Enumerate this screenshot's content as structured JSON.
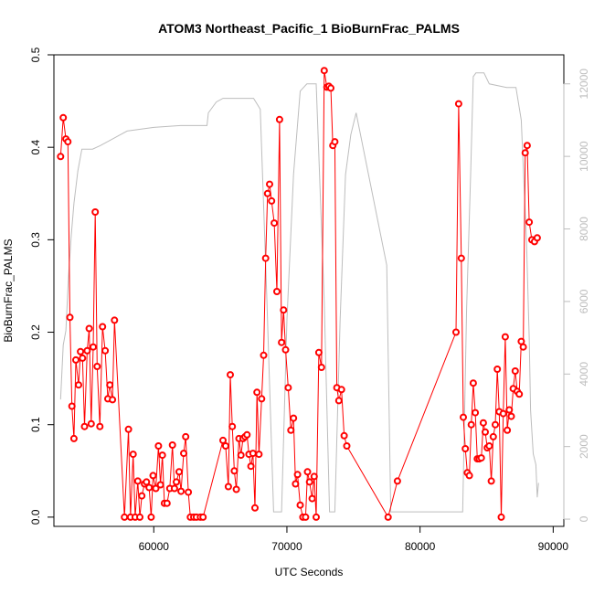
{
  "chart_data": {
    "type": "line",
    "title": "ATOM3 Northeast_Pacific_1 BioBurnFrac_PALMS",
    "xlabel": "UTC Seconds",
    "ylabel": "BioBurnFrac_PALMS",
    "xlim": [
      52500,
      90800
    ],
    "ylim": [
      -0.01,
      0.5
    ],
    "y2lim": [
      -200,
      12800
    ],
    "x_ticks": [
      60000,
      70000,
      80000,
      90000
    ],
    "x_tick_labels": [
      "60000",
      "70000",
      "80000",
      "90000"
    ],
    "y_ticks": [
      0.0,
      0.1,
      0.2,
      0.3,
      0.4,
      0.5
    ],
    "y_tick_labels": [
      "0.0",
      "0.1",
      "0.2",
      "0.3",
      "0.4",
      "0.5"
    ],
    "y2_ticks": [
      0,
      2000,
      4000,
      6000,
      8000,
      10000,
      12000
    ],
    "y2_tick_labels": [
      "0",
      "2000",
      "4000",
      "6000",
      "8000",
      "10000",
      "12000"
    ],
    "colors": {
      "series": "#ff0000",
      "altitude": "#bdbdbd",
      "axis": "#000000"
    },
    "series": [
      {
        "axis": "left",
        "color": "#ff0000",
        "style": "line+points",
        "points": [
          [
            53000,
            0.39
          ],
          [
            53200,
            0.432
          ],
          [
            53400,
            0.409
          ],
          [
            53550,
            0.406
          ],
          [
            53700,
            0.216
          ],
          [
            53850,
            0.12
          ],
          [
            54000,
            0.085
          ],
          [
            54150,
            0.17
          ],
          [
            54350,
            0.143
          ],
          [
            54500,
            0.179
          ],
          [
            54650,
            0.172
          ],
          [
            54800,
            0.098
          ],
          [
            55000,
            0.18
          ],
          [
            55150,
            0.204
          ],
          [
            55300,
            0.101
          ],
          [
            55450,
            0.184
          ],
          [
            55600,
            0.33
          ],
          [
            55750,
            0.163
          ],
          [
            55950,
            0.098
          ],
          [
            56150,
            0.206
          ],
          [
            56350,
            0.18
          ],
          [
            56550,
            0.128
          ],
          [
            56700,
            0.143
          ],
          [
            56900,
            0.127
          ],
          [
            57050,
            0.213
          ],
          [
            57800,
            0.0
          ],
          [
            58100,
            0.095
          ],
          [
            58250,
            0.0
          ],
          [
            58450,
            0.068
          ],
          [
            58600,
            0.0
          ],
          [
            58800,
            0.039
          ],
          [
            58950,
            0.0
          ],
          [
            59100,
            0.023
          ],
          [
            59300,
            0.036
          ],
          [
            59450,
            0.038
          ],
          [
            59650,
            0.032
          ],
          [
            59800,
            0.0
          ],
          [
            59950,
            0.045
          ],
          [
            60150,
            0.031
          ],
          [
            60350,
            0.077
          ],
          [
            60500,
            0.035
          ],
          [
            60650,
            0.067
          ],
          [
            60800,
            0.015
          ],
          [
            61000,
            0.015
          ],
          [
            61200,
            0.031
          ],
          [
            61400,
            0.078
          ],
          [
            61550,
            0.031
          ],
          [
            61700,
            0.038
          ],
          [
            61900,
            0.049
          ],
          [
            62050,
            0.028
          ],
          [
            62250,
            0.069
          ],
          [
            62400,
            0.087
          ],
          [
            62600,
            0.027
          ],
          [
            62750,
            0.0
          ],
          [
            63000,
            0.0
          ],
          [
            63200,
            0.0
          ],
          [
            63500,
            0.0
          ],
          [
            63700,
            0.0
          ],
          [
            65200,
            0.083
          ],
          [
            65400,
            0.077
          ],
          [
            65600,
            0.033
          ],
          [
            65750,
            0.154
          ],
          [
            65900,
            0.098
          ],
          [
            66050,
            0.05
          ],
          [
            66200,
            0.03
          ],
          [
            66400,
            0.085
          ],
          [
            66550,
            0.067
          ],
          [
            66700,
            0.085
          ],
          [
            66850,
            0.087
          ],
          [
            67000,
            0.089
          ],
          [
            67150,
            0.068
          ],
          [
            67300,
            0.055
          ],
          [
            67450,
            0.069
          ],
          [
            67600,
            0.01
          ],
          [
            67750,
            0.135
          ],
          [
            67900,
            0.068
          ],
          [
            68100,
            0.128
          ],
          [
            68250,
            0.175
          ],
          [
            68400,
            0.28
          ],
          [
            68550,
            0.35
          ],
          [
            68700,
            0.36
          ],
          [
            68850,
            0.342
          ],
          [
            69050,
            0.318
          ],
          [
            69250,
            0.244
          ],
          [
            69450,
            0.43
          ],
          [
            69600,
            0.189
          ],
          [
            69750,
            0.224
          ],
          [
            69900,
            0.181
          ],
          [
            70100,
            0.14
          ],
          [
            70300,
            0.094
          ],
          [
            70500,
            0.107
          ],
          [
            70650,
            0.036
          ],
          [
            70800,
            0.046
          ],
          [
            71000,
            0.013
          ],
          [
            71200,
            0.0
          ],
          [
            71400,
            0.0
          ],
          [
            71550,
            0.049
          ],
          [
            71700,
            0.038
          ],
          [
            71900,
            0.02
          ],
          [
            72050,
            0.044
          ],
          [
            72200,
            0.0
          ],
          [
            72400,
            0.178
          ],
          [
            72600,
            0.162
          ],
          [
            72800,
            0.483
          ],
          [
            73000,
            0.465
          ],
          [
            73150,
            0.466
          ],
          [
            73300,
            0.464
          ],
          [
            73450,
            0.402
          ],
          [
            73600,
            0.406
          ],
          [
            73750,
            0.14
          ],
          [
            73900,
            0.126
          ],
          [
            74100,
            0.138
          ],
          [
            74300,
            0.088
          ],
          [
            74500,
            0.077
          ],
          [
            77600,
            0.0
          ],
          [
            78300,
            0.039
          ],
          [
            82700,
            0.2
          ],
          [
            82900,
            0.447
          ],
          [
            83100,
            0.28
          ],
          [
            83250,
            0.108
          ],
          [
            83400,
            0.074
          ],
          [
            83550,
            0.048
          ],
          [
            83700,
            0.045
          ],
          [
            83850,
            0.1
          ],
          [
            84000,
            0.145
          ],
          [
            84150,
            0.113
          ],
          [
            84300,
            0.063
          ],
          [
            84450,
            0.063
          ],
          [
            84600,
            0.064
          ],
          [
            84750,
            0.102
          ],
          [
            84900,
            0.092
          ],
          [
            85050,
            0.075
          ],
          [
            85200,
            0.077
          ],
          [
            85350,
            0.039
          ],
          [
            85500,
            0.087
          ],
          [
            85650,
            0.1
          ],
          [
            85800,
            0.16
          ],
          [
            85950,
            0.114
          ],
          [
            86100,
            0.0
          ],
          [
            86250,
            0.112
          ],
          [
            86400,
            0.195
          ],
          [
            86550,
            0.094
          ],
          [
            86700,
            0.116
          ],
          [
            86850,
            0.109
          ],
          [
            87000,
            0.139
          ],
          [
            87150,
            0.158
          ],
          [
            87300,
            0.136
          ],
          [
            87450,
            0.133
          ],
          [
            87600,
            0.19
          ],
          [
            87750,
            0.184
          ],
          [
            87900,
            0.394
          ],
          [
            88050,
            0.402
          ],
          [
            88200,
            0.319
          ],
          [
            88400,
            0.3
          ],
          [
            88600,
            0.298
          ],
          [
            88800,
            0.302
          ]
        ]
      },
      {
        "axis": "right",
        "color": "#bdbdbd",
        "style": "line",
        "points": [
          [
            53000,
            3300
          ],
          [
            53200,
            4800
          ],
          [
            53400,
            5200
          ],
          [
            53600,
            6700
          ],
          [
            53800,
            7800
          ],
          [
            54000,
            8700
          ],
          [
            54300,
            9600
          ],
          [
            54600,
            10200
          ],
          [
            54900,
            10200
          ],
          [
            55400,
            10200
          ],
          [
            56000,
            10300
          ],
          [
            58000,
            10700
          ],
          [
            60000,
            10800
          ],
          [
            62000,
            10850
          ],
          [
            64000,
            10850
          ],
          [
            64100,
            11200
          ],
          [
            64700,
            11500
          ],
          [
            65200,
            11600
          ],
          [
            66000,
            11600
          ],
          [
            67500,
            11600
          ],
          [
            68000,
            11300
          ],
          [
            68500,
            6000
          ],
          [
            69000,
            200
          ],
          [
            69600,
            200
          ],
          [
            70000,
            5500
          ],
          [
            70500,
            9500
          ],
          [
            71000,
            11800
          ],
          [
            71500,
            12000
          ],
          [
            72200,
            12000
          ],
          [
            72800,
            6000
          ],
          [
            73200,
            200
          ],
          [
            73600,
            200
          ],
          [
            74000,
            5500
          ],
          [
            74400,
            9500
          ],
          [
            74800,
            10600
          ],
          [
            75200,
            11200
          ],
          [
            77500,
            7000
          ],
          [
            77800,
            200
          ],
          [
            78300,
            200
          ],
          [
            82000,
            200
          ],
          [
            83200,
            200
          ],
          [
            83500,
            5800
          ],
          [
            83800,
            9500
          ],
          [
            84000,
            12200
          ],
          [
            84200,
            12300
          ],
          [
            84800,
            12300
          ],
          [
            85200,
            12000
          ],
          [
            86500,
            11900
          ],
          [
            87200,
            11900
          ],
          [
            87600,
            11000
          ],
          [
            88000,
            7600
          ],
          [
            88200,
            5000
          ],
          [
            88300,
            3000
          ],
          [
            88500,
            1800
          ],
          [
            88700,
            1500
          ],
          [
            88800,
            600
          ],
          [
            88900,
            1000
          ]
        ]
      }
    ]
  }
}
